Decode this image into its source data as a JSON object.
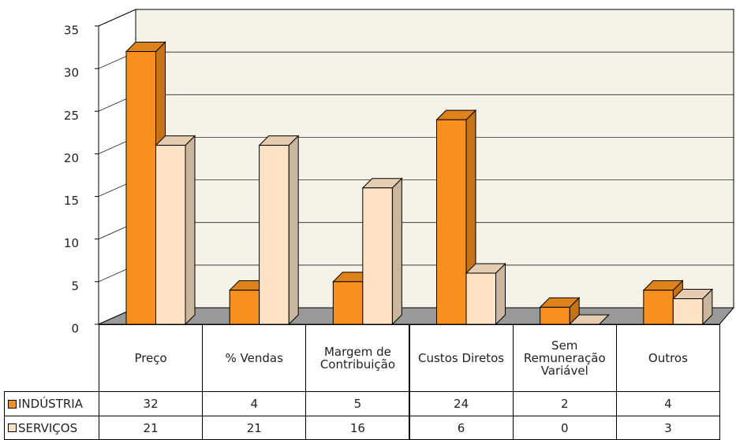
{
  "chart_data": {
    "type": "bar3d",
    "categories": [
      "Preço",
      "% Vendas",
      "Margem de Contribuição",
      "Custos Diretos",
      "Sem Remuneração Variável",
      "Outros"
    ],
    "series": [
      {
        "name": "INDÚSTRIA",
        "color": "#f7901e",
        "values": [
          32,
          4,
          5,
          24,
          2,
          4
        ]
      },
      {
        "name": "SERVIÇOS",
        "color": "#fde3c3",
        "values": [
          21,
          21,
          16,
          6,
          0,
          3
        ]
      }
    ],
    "ylim": [
      0,
      35
    ],
    "yticks": [
      0,
      5,
      10,
      15,
      20,
      25,
      30,
      35
    ],
    "grid": true,
    "legend": "table"
  }
}
